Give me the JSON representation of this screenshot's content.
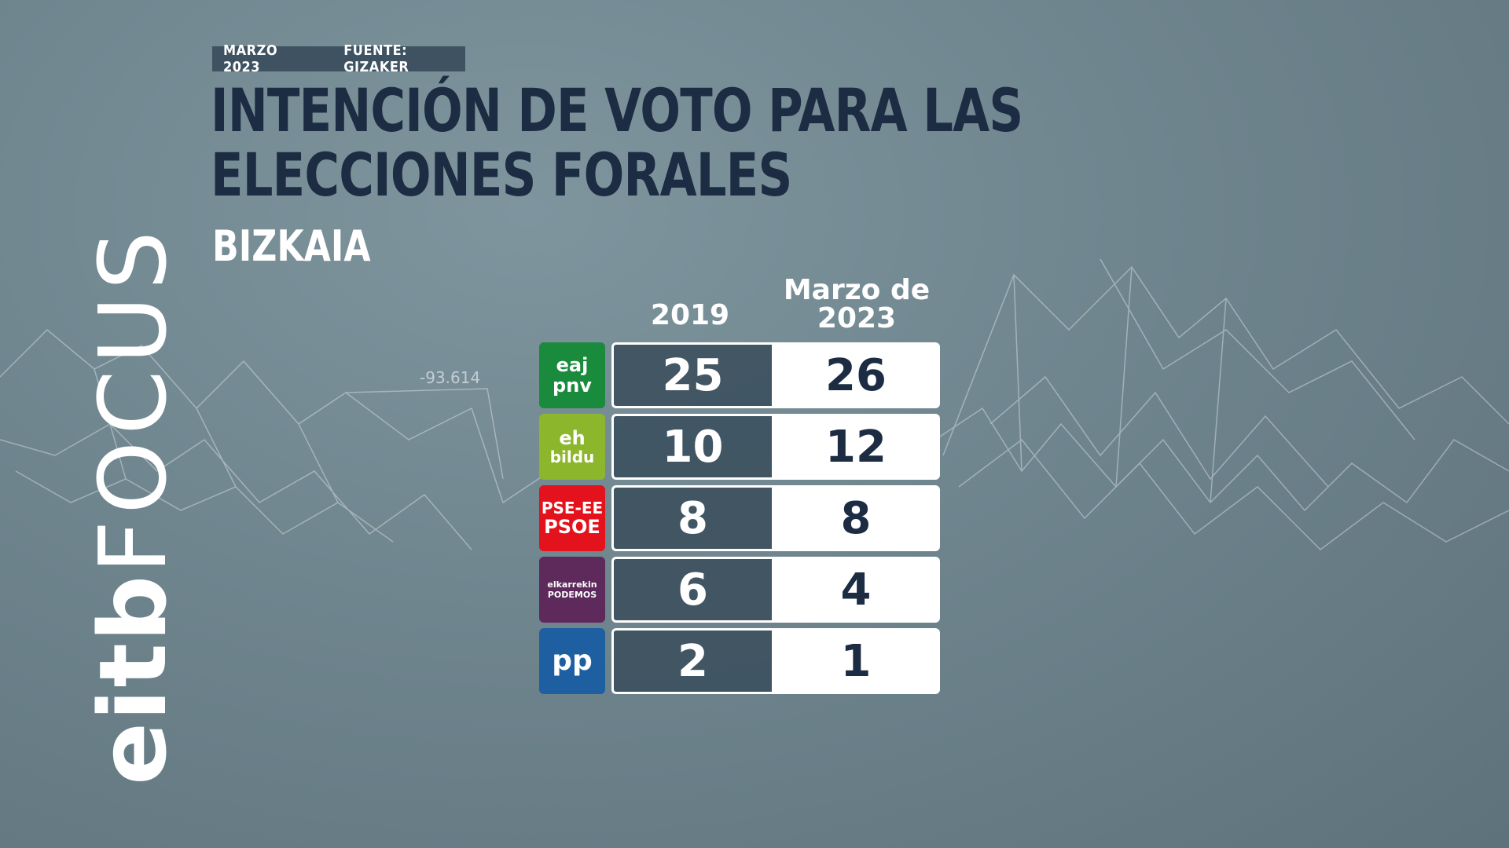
{
  "header": {
    "date": "MARZO 2023",
    "source": "FUENTE: GIZAKER",
    "title": "INTENCIÓN DE VOTO PARA LAS ELECCIONES FORALES",
    "subtitle": "BIZKAIA"
  },
  "background": {
    "ticker_value": "-93.614"
  },
  "brand": {
    "part1": "eitb",
    "part2": "FOCUS"
  },
  "colors": {
    "title": "#1c2c42",
    "cell_dark": "#3c505e",
    "cell_light": "#ffffff"
  },
  "chart_data": {
    "type": "table",
    "title": "INTENCIÓN DE VOTO PARA LAS ELECCIONES FORALES",
    "subtitle": "BIZKAIA",
    "columns": [
      "2019",
      "Marzo de 2023"
    ],
    "column_lines": [
      [
        "2019"
      ],
      [
        "Marzo de",
        "2023"
      ]
    ],
    "rows": [
      {
        "party": "EAJ-PNV",
        "logo_lines": [
          "eaj",
          "pnv"
        ],
        "color": "#1a8a3c",
        "values": [
          25,
          26
        ]
      },
      {
        "party": "EH Bildu",
        "logo_lines": [
          "eh",
          "bildu"
        ],
        "color": "#8cb62b",
        "values": [
          10,
          12
        ]
      },
      {
        "party": "PSE-EE PSOE",
        "logo_lines": [
          "PSE-EE",
          "PSOE"
        ],
        "color": "#e3121c",
        "values": [
          8,
          8
        ]
      },
      {
        "party": "Elkarrekin Podemos",
        "logo_lines": [
          "elkarrekin",
          "PODEMOS"
        ],
        "color": "#5e2a5c",
        "values": [
          6,
          4
        ]
      },
      {
        "party": "PP",
        "logo_lines": [
          "pp"
        ],
        "color": "#1d5fa0",
        "values": [
          2,
          1
        ]
      }
    ]
  }
}
